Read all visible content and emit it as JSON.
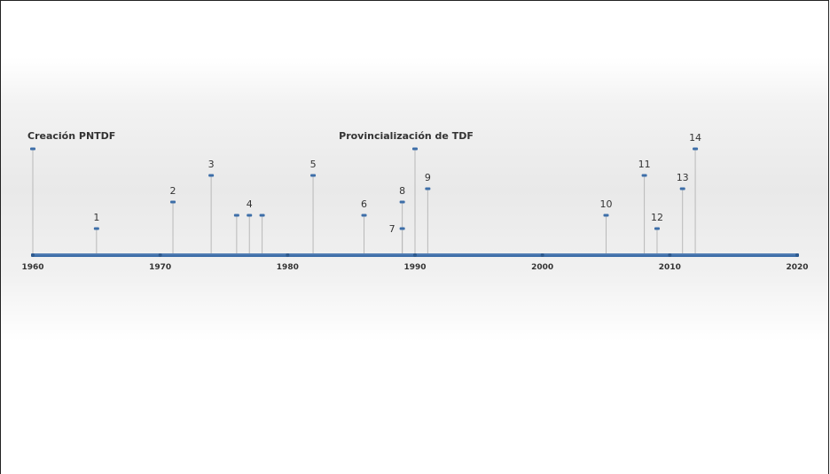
{
  "colors": {
    "axis": "#3d6ea8",
    "stem": "#b9b9b9",
    "marker": "#3d6ea8",
    "text": "#333333"
  },
  "timeline": {
    "start_year": 1960,
    "end_year": 2020,
    "year_labels": [
      "1960",
      "1970",
      "1980",
      "1990",
      "2000",
      "2010",
      "2020"
    ],
    "events": [
      {
        "label": "Creación  PNTDF",
        "year": 1960,
        "level": 8,
        "style": "title",
        "align": "left"
      },
      {
        "label": "1",
        "year": 1965,
        "level": 2,
        "style": "number",
        "align": "center"
      },
      {
        "label": "2",
        "year": 1971,
        "level": 4,
        "style": "number",
        "align": "center"
      },
      {
        "label": "3",
        "year": 1974,
        "level": 6,
        "style": "number",
        "align": "center"
      },
      {
        "label": "",
        "year": 1976,
        "level": 3,
        "style": "number",
        "align": "center"
      },
      {
        "label": "4",
        "year": 1977,
        "level": 3,
        "style": "number",
        "align": "center"
      },
      {
        "label": "",
        "year": 1978,
        "level": 3,
        "style": "number",
        "align": "center"
      },
      {
        "label": "5",
        "year": 1982,
        "level": 6,
        "style": "number",
        "align": "center"
      },
      {
        "label": "6",
        "year": 1986,
        "level": 3,
        "style": "number",
        "align": "center"
      },
      {
        "label": "7",
        "year": 1989,
        "level": 2,
        "style": "number",
        "align": "left-of"
      },
      {
        "label": "8",
        "year": 1989,
        "level": 4,
        "style": "number",
        "align": "center"
      },
      {
        "label": "Provincialización de TDF",
        "year": 1990,
        "level": 8,
        "style": "title",
        "align": "center"
      },
      {
        "label": "9",
        "year": 1991,
        "level": 5,
        "style": "number",
        "align": "center"
      },
      {
        "label": "10",
        "year": 2005,
        "level": 3,
        "style": "number",
        "align": "center"
      },
      {
        "label": "11",
        "year": 2008,
        "level": 6,
        "style": "number",
        "align": "center"
      },
      {
        "label": "12",
        "year": 2009,
        "level": 2,
        "style": "number",
        "align": "center"
      },
      {
        "label": "13",
        "year": 2011,
        "level": 5,
        "style": "number",
        "align": "center"
      },
      {
        "label": "14",
        "year": 2012,
        "level": 8,
        "style": "number",
        "align": "center"
      }
    ]
  }
}
